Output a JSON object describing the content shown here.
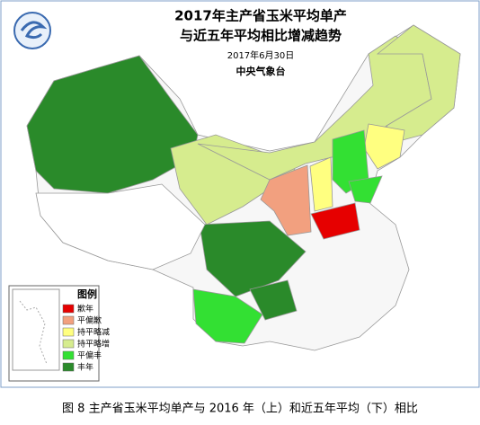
{
  "header": {
    "title_line1": "2017年主产省玉米平均单产",
    "title_line2": "与近五年平均相比增减趋势",
    "date": "2017年6月30日",
    "agency": "中央气象台"
  },
  "legend": {
    "title": "图例",
    "items": [
      {
        "label": "歉年",
        "color": "#e60000"
      },
      {
        "label": "平偏歉",
        "color": "#f2a07f"
      },
      {
        "label": "持平略减",
        "color": "#ffff80"
      },
      {
        "label": "持平略增",
        "color": "#d6ec8e"
      },
      {
        "label": "平偏丰",
        "color": "#33e033"
      },
      {
        "label": "丰年",
        "color": "#2a8a2a"
      }
    ]
  },
  "caption": "图 8 主产省玉米平均单产与 2016 年（上）和近五年平均（下）相比"
}
